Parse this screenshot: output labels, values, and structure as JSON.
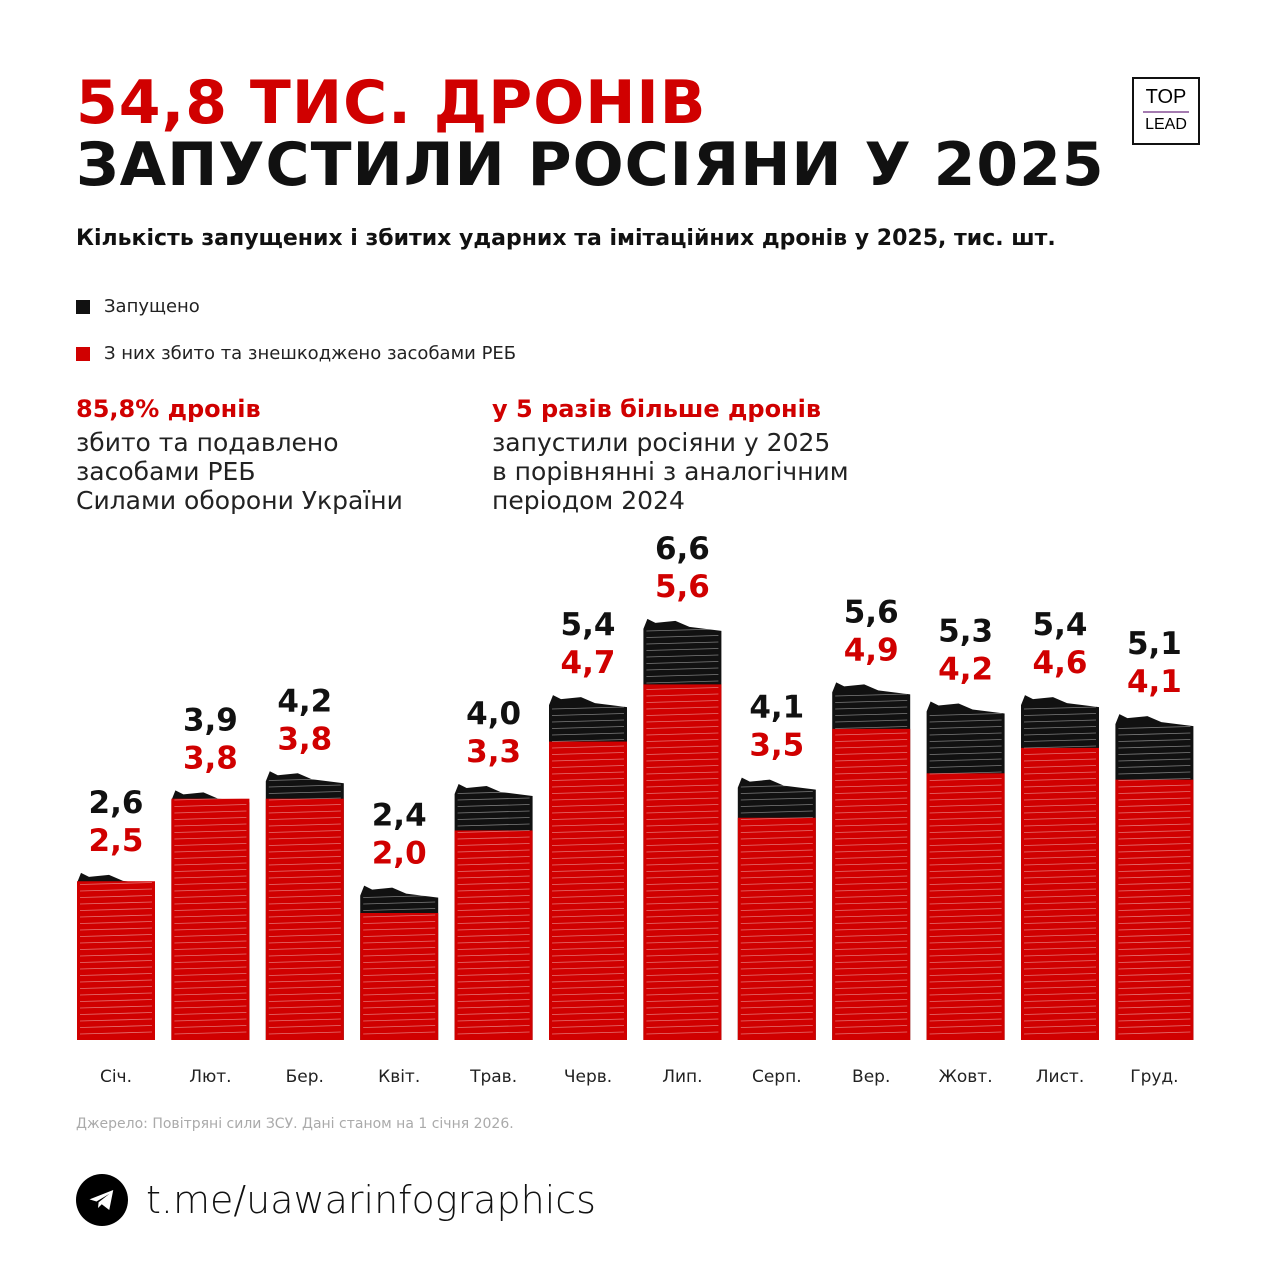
{
  "title_line1": "54,8 ТИС. ДРОНІВ",
  "title_line2": "ЗАПУСТИЛИ РОСІЯНИ У 2025",
  "logo": {
    "top": "TOP",
    "bottom": "LEAD"
  },
  "subtitle": "Кількість запущених і збитих ударних та імітаційних дронів у 2025, тис. шт.",
  "legend": [
    {
      "label": "Запущено",
      "color": "#111111"
    },
    {
      "label": "З них збито та знешкоджено засобами РЕБ",
      "color": "#d00000"
    }
  ],
  "stats": [
    {
      "headline": "85,8% дронів",
      "lines": [
        "збито та подавлено",
        "засобами РЕБ",
        "Силами оборони України"
      ]
    },
    {
      "headline": "у 5 разів більше дронів",
      "lines": [
        "запустили росіяни у 2025",
        "в порівнянні з аналогічним",
        "періодом 2024"
      ]
    }
  ],
  "chart_data": {
    "type": "bar",
    "categories": [
      "Січ.",
      "Лют.",
      "Бер.",
      "Квіт.",
      "Трав.",
      "Черв.",
      "Лип.",
      "Серп.",
      "Вер.",
      "Жовт.",
      "Лист.",
      "Груд."
    ],
    "series": [
      {
        "name": "Запущено",
        "color": "#111111",
        "values": [
          2.6,
          3.9,
          4.2,
          2.4,
          4.0,
          5.4,
          6.6,
          4.1,
          5.6,
          5.3,
          5.4,
          5.1
        ],
        "labels": [
          "2,6",
          "3,9",
          "4,2",
          "2,4",
          "4,0",
          "5,4",
          "6,6",
          "4,1",
          "5,6",
          "5,3",
          "5,4",
          "5,1"
        ]
      },
      {
        "name": "З них збито та знешкоджено засобами РЕБ",
        "color": "#d00000",
        "values": [
          2.5,
          3.8,
          3.8,
          2.0,
          3.3,
          4.7,
          5.6,
          3.5,
          4.9,
          4.2,
          4.6,
          4.1
        ],
        "labels": [
          "2,5",
          "3,8",
          "3,8",
          "2,0",
          "3,3",
          "4,7",
          "5,6",
          "3,5",
          "4,9",
          "4,2",
          "4,6",
          "4,1"
        ]
      }
    ],
    "ylim": [
      0,
      6.6
    ],
    "grid": false
  },
  "source": "Джерело: Повітряні сили ЗСУ. Дані станом на 1 січня 2026.",
  "telegram": "t.me/uawarinfographics"
}
